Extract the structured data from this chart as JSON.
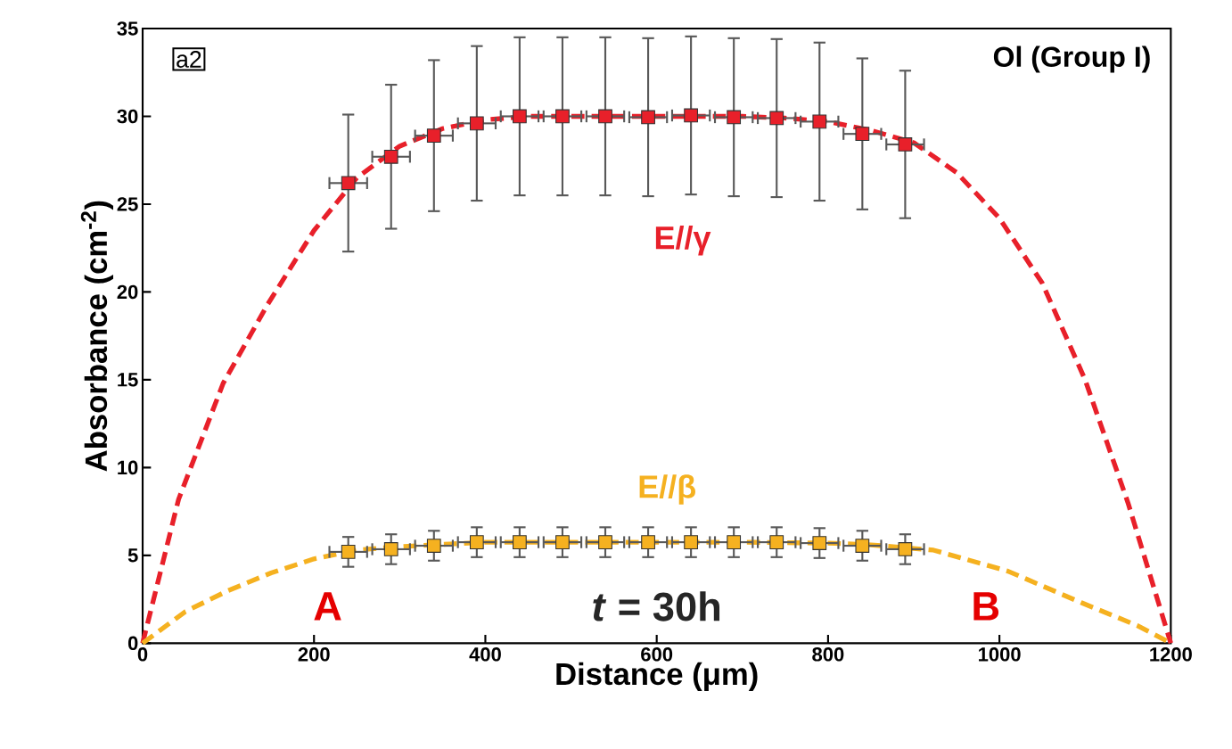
{
  "chart_data": {
    "type": "scatter",
    "xlabel": "Distance (μm)",
    "ylabel": "Absorbance (cm$^{-2}$)",
    "xlim": [
      0,
      1200
    ],
    "ylim": [
      0,
      35
    ],
    "xticks": [
      0,
      200,
      400,
      600,
      800,
      1000,
      1200
    ],
    "yticks": [
      0,
      5,
      10,
      15,
      20,
      25,
      30,
      35
    ],
    "grid": false,
    "annotations": [
      "a2",
      "Ol (Group I)",
      "A",
      "*t* = 30h",
      "B"
    ],
    "series": [
      {
        "type": "line",
        "color": "#e8202a",
        "line_style": "dashed",
        "marker": "none",
        "x": [
          0,
          42,
          94,
          146,
          200,
          250,
          300,
          350,
          400,
          450,
          500,
          600,
          700,
          750,
          800,
          850,
          900,
          950,
          1000,
          1050,
          1100,
          1150,
          1200
        ],
        "values": [
          0,
          8.2,
          14.8,
          19.3,
          23.5,
          26.5,
          28.3,
          29.3,
          29.8,
          30,
          30,
          30,
          30,
          29.9,
          29.7,
          29.2,
          28.5,
          26.8,
          24.2,
          20.5,
          15,
          8,
          0
        ]
      },
      {
        "name": "E//γ",
        "color": "#e8202a",
        "marker": "square",
        "x": [
          240,
          290,
          340,
          390,
          440,
          490,
          540,
          590,
          640,
          690,
          740,
          790,
          840,
          890
        ],
        "values": [
          26.2,
          27.7,
          28.9,
          29.6,
          30,
          30,
          30,
          29.95,
          30.05,
          29.95,
          29.9,
          29.7,
          29,
          28.4
        ],
        "errors": [
          3.9,
          4.1,
          4.3,
          4.4,
          4.5,
          4.5,
          4.5,
          4.5,
          4.5,
          4.5,
          4.5,
          4.5,
          4.3,
          4.2
        ],
        "xerrors": [
          22,
          22,
          22,
          22,
          22,
          22,
          22,
          22,
          22,
          22,
          22,
          22,
          22,
          22
        ]
      },
      {
        "type": "line",
        "color": "#f5b120",
        "line_style": "dashed",
        "marker": "none",
        "x": [
          0,
          50,
          100,
          150,
          200,
          250,
          300,
          400,
          500,
          600,
          700,
          800,
          850,
          923,
          1010,
          1096,
          1161,
          1200
        ],
        "values": [
          0,
          1.8,
          3.0,
          4.0,
          4.8,
          5.3,
          5.5,
          5.75,
          5.75,
          5.75,
          5.75,
          5.7,
          5.6,
          5.3,
          4.1,
          2.3,
          1.0,
          0
        ]
      },
      {
        "name": "E//β",
        "color": "#f5b120",
        "marker": "square",
        "x": [
          240,
          290,
          340,
          390,
          440,
          490,
          540,
          590,
          640,
          690,
          740,
          790,
          840,
          890
        ],
        "values": [
          5.2,
          5.35,
          5.55,
          5.75,
          5.75,
          5.75,
          5.75,
          5.75,
          5.75,
          5.75,
          5.75,
          5.7,
          5.55,
          5.35
        ],
        "errors": [
          0.85,
          0.85,
          0.85,
          0.85,
          0.85,
          0.85,
          0.85,
          0.85,
          0.85,
          0.85,
          0.85,
          0.85,
          0.85,
          0.85
        ],
        "xerrors": [
          22,
          22,
          22,
          22,
          22,
          22,
          22,
          22,
          22,
          22,
          22,
          22,
          22,
          22
        ]
      }
    ]
  }
}
